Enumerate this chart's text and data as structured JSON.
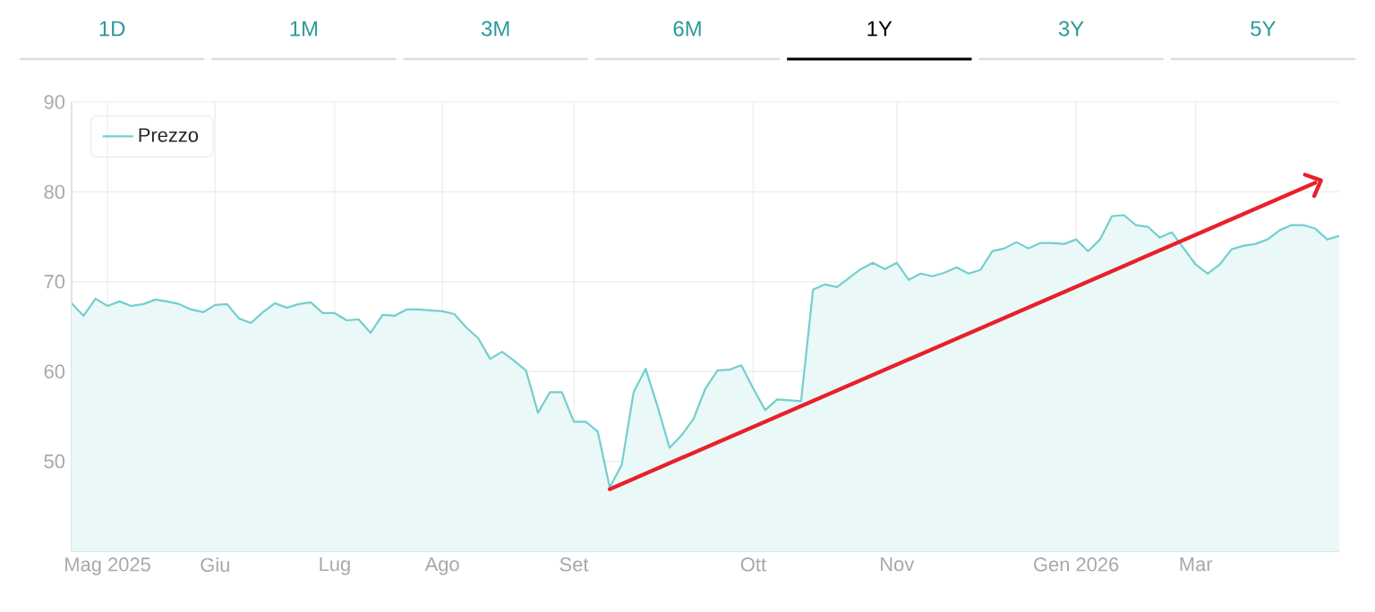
{
  "chart_data": {
    "type": "area",
    "categories": [
      null,
      null,
      null,
      "Mag 2025",
      null,
      null,
      null,
      null,
      null,
      null,
      null,
      null,
      "Giu",
      null,
      null,
      null,
      null,
      null,
      null,
      null,
      null,
      null,
      "Lug",
      null,
      null,
      null,
      null,
      null,
      null,
      null,
      null,
      "Ago",
      null,
      null,
      null,
      null,
      null,
      null,
      null,
      null,
      null,
      null,
      "Set",
      null,
      null,
      null,
      null,
      null,
      null,
      null,
      null,
      null,
      null,
      null,
      null,
      null,
      null,
      "Ott",
      null,
      null,
      null,
      null,
      null,
      null,
      null,
      null,
      null,
      null,
      null,
      "Nov",
      null,
      null,
      null,
      null,
      null,
      null,
      null,
      null,
      null,
      null,
      null,
      null,
      null,
      null,
      "Gen 2026",
      null,
      null,
      null,
      null,
      null,
      null,
      null,
      null,
      null,
      "Mar",
      null,
      null,
      null,
      null,
      null,
      null,
      null,
      null,
      null,
      null,
      null,
      null
    ],
    "series": [
      {
        "name": "Prezzo",
        "color": "#72cfcf",
        "values": [
          67.6,
          66.2,
          68.1,
          67.3,
          67.8,
          67.3,
          67.5,
          68.0,
          67.8,
          67.5,
          66.9,
          66.6,
          67.4,
          67.5,
          65.9,
          65.4,
          66.6,
          67.6,
          67.1,
          67.5,
          67.7,
          66.5,
          66.5,
          65.7,
          65.8,
          64.3,
          66.3,
          66.2,
          66.9,
          66.9,
          66.8,
          66.7,
          66.4,
          64.9,
          63.7,
          61.4,
          62.2,
          61.2,
          60.1,
          55.4,
          57.7,
          57.7,
          54.4,
          54.4,
          53.3,
          47.1,
          49.6,
          57.7,
          60.3,
          56.1,
          51.5,
          52.9,
          54.7,
          58.1,
          60.1,
          60.2,
          60.7,
          58.1,
          55.7,
          56.9,
          null,
          56.7,
          69.1,
          69.7,
          69.4,
          70.4,
          71.4,
          72.1,
          71.4,
          72.1,
          70.2,
          70.9,
          70.6,
          71.0,
          71.6,
          70.9,
          71.3,
          73.4,
          73.7,
          74.4,
          73.7,
          74.3,
          74.3,
          74.2,
          74.7,
          73.4,
          74.7,
          77.3,
          77.4,
          76.3,
          76.1,
          74.9,
          75.5,
          null,
          71.9,
          70.9,
          71.9,
          73.6,
          74.0,
          74.2,
          74.7,
          75.7,
          76.3,
          76.3,
          75.9,
          74.7,
          75.1
        ]
      },
      {
        "type": "line",
        "color": "#e8202a",
        "values": [
          null,
          null,
          null,
          null,
          null,
          null,
          null,
          null,
          null,
          null,
          null,
          null,
          null,
          null,
          null,
          null,
          null,
          null,
          null,
          null,
          null,
          null,
          null,
          null,
          null,
          null,
          null,
          null,
          null,
          null,
          null,
          null,
          null,
          null,
          null,
          null,
          null,
          null,
          null,
          null,
          null,
          null,
          null,
          null,
          null,
          46.9,
          null,
          null,
          null,
          null,
          null,
          null,
          null,
          null,
          null,
          null,
          null,
          null,
          null,
          null,
          null,
          null,
          null,
          null,
          null,
          null,
          null,
          null,
          null,
          null,
          null,
          null,
          null,
          null,
          null,
          null,
          null,
          null,
          null,
          null,
          null,
          null,
          null,
          null,
          null,
          null,
          null,
          null,
          null,
          null,
          null,
          null,
          null,
          null,
          null,
          null,
          null,
          null,
          null,
          null,
          null,
          null,
          null,
          null,
          81,
          null,
          null
        ]
      }
    ],
    "ylim": [
      40,
      90
    ],
    "yticks": [
      50,
      60,
      70,
      80,
      90
    ],
    "grid": true,
    "legend": "top left",
    "annotations": [
      "1D",
      "1M",
      "3M",
      "6M",
      "1Y",
      "3Y",
      "5Y"
    ]
  }
}
